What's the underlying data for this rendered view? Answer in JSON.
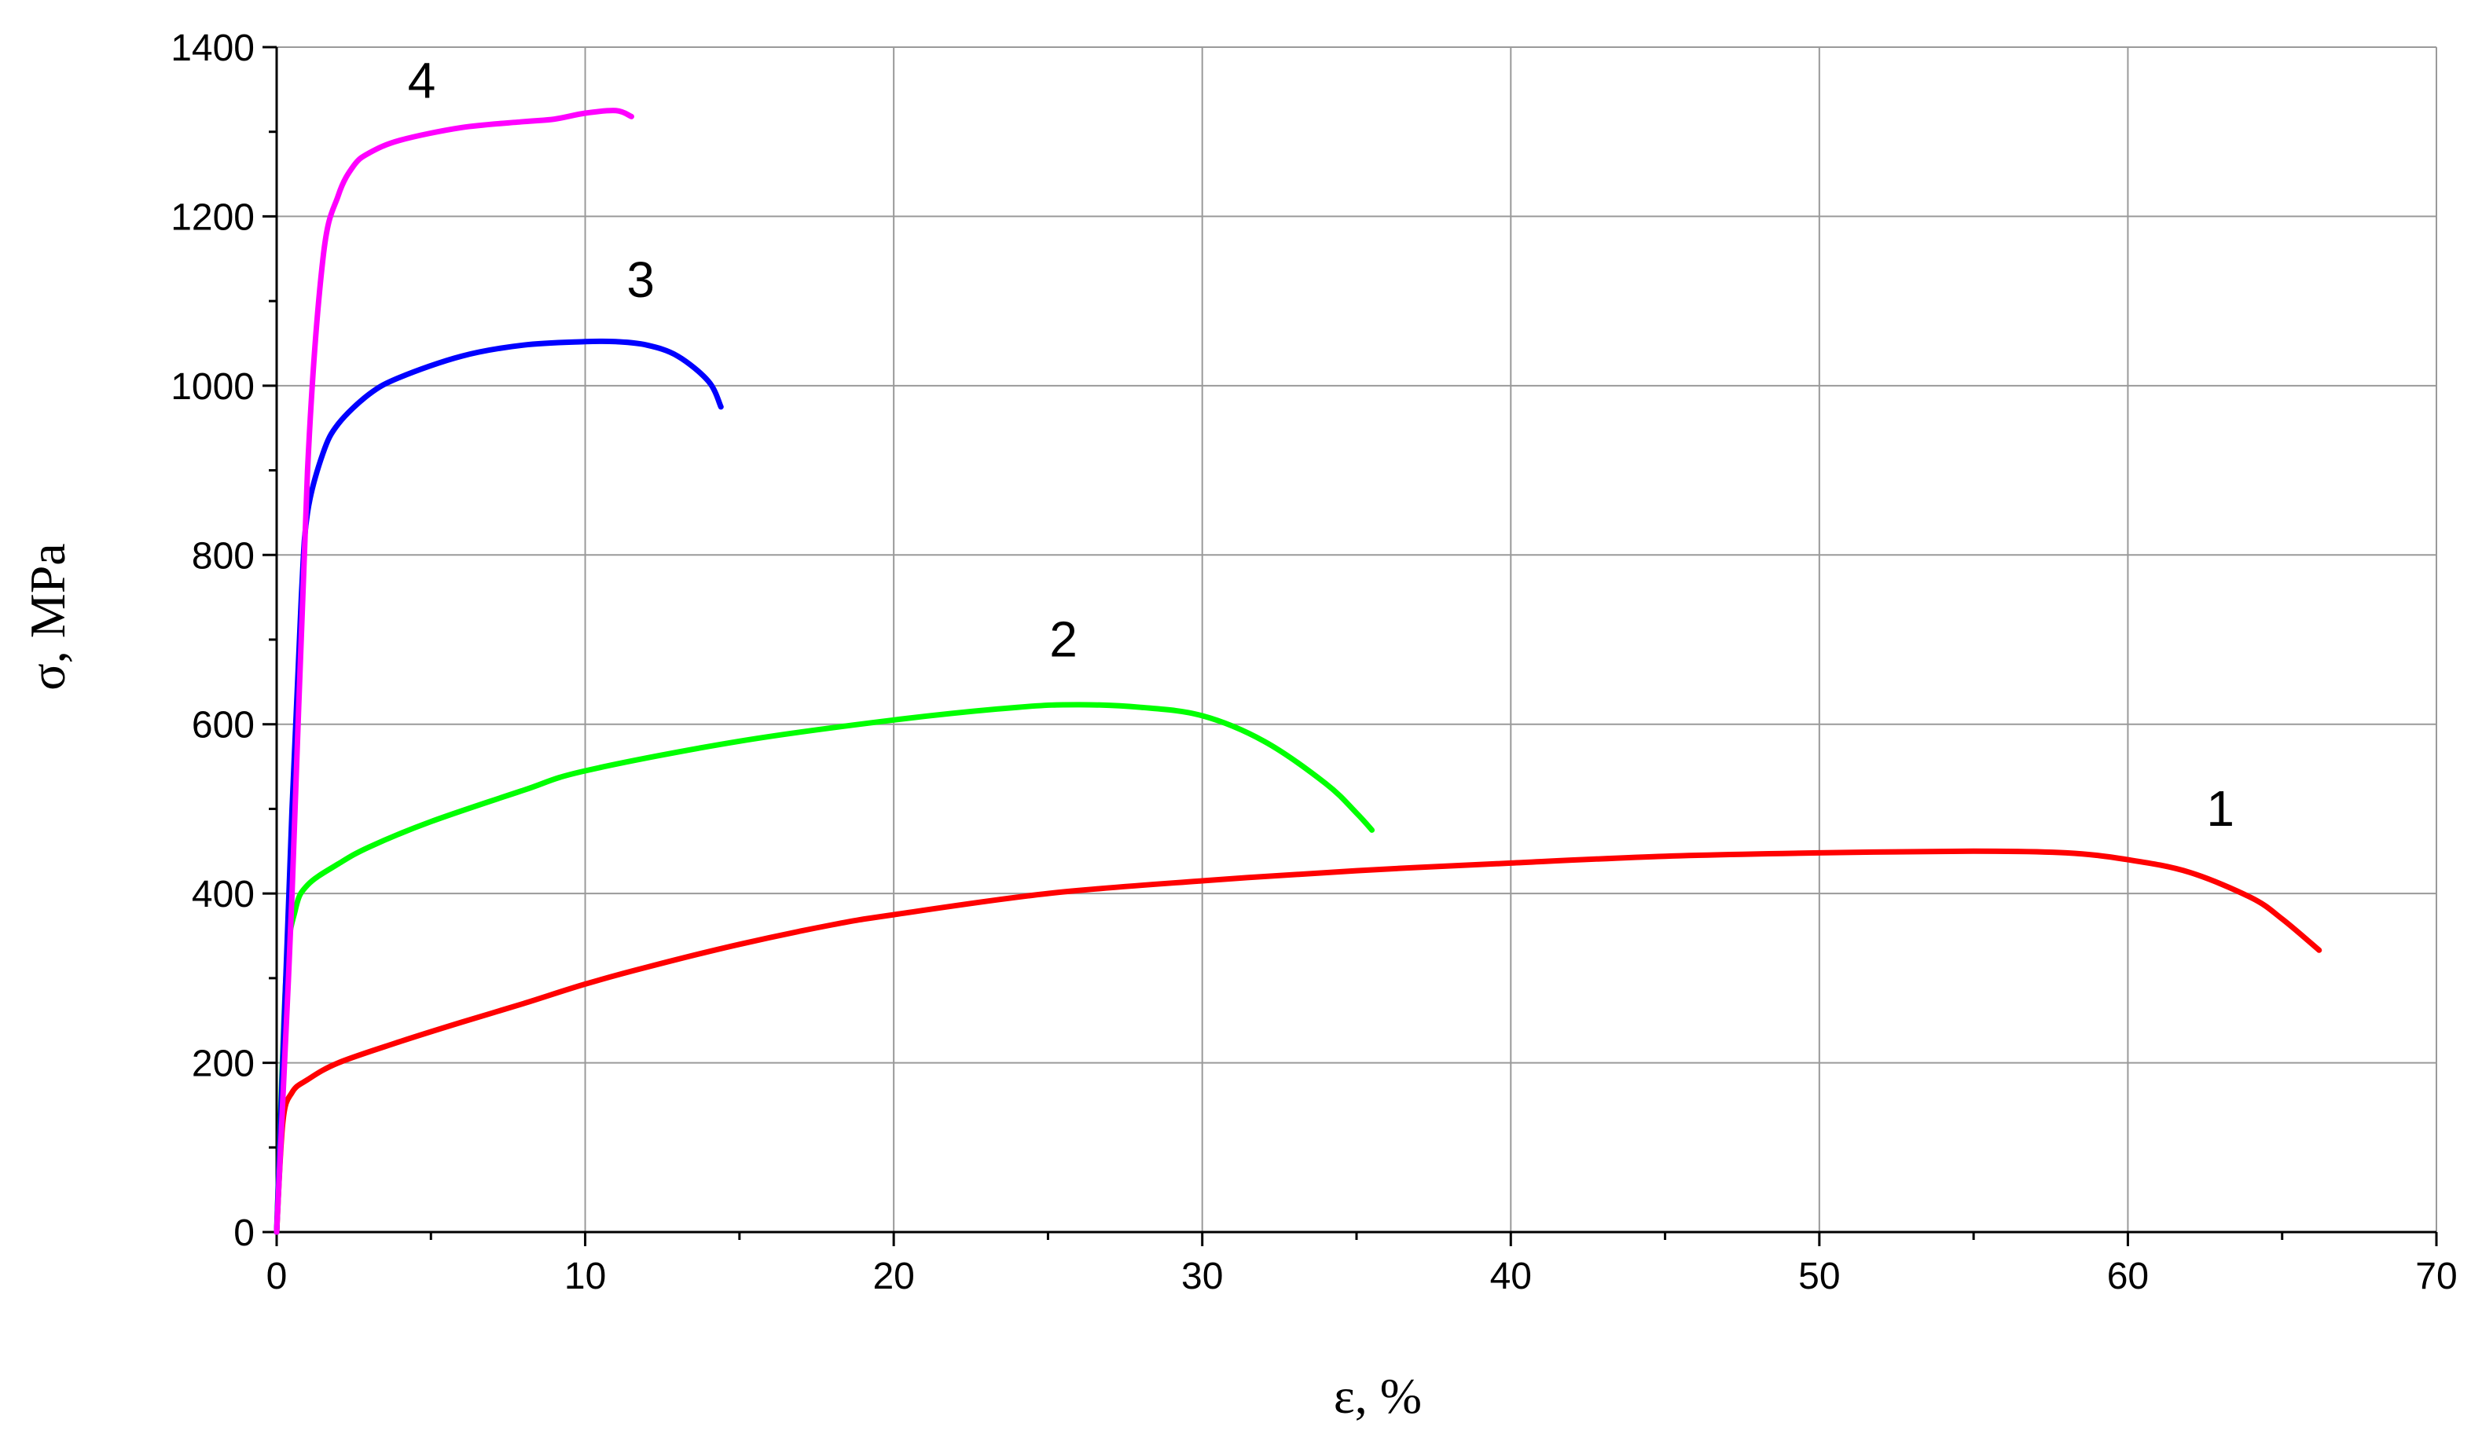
{
  "chart_data": {
    "type": "line",
    "xlabel": "ε, %",
    "ylabel": "σ, MPa",
    "xlim": [
      0,
      70
    ],
    "ylim": [
      0,
      1400
    ],
    "x_ticks": [
      0,
      10,
      20,
      30,
      40,
      50,
      60,
      70
    ],
    "y_ticks": [
      0,
      200,
      400,
      600,
      800,
      1000,
      1200,
      1400
    ],
    "x_minor_step": 5,
    "y_minor_step": 100,
    "grid": true,
    "legend": "none",
    "series": [
      {
        "name": "1",
        "color": "#ff0000",
        "x": [
          0,
          0.2,
          0.5,
          1,
          2,
          4,
          6,
          8,
          10,
          12,
          15,
          18,
          20,
          25,
          30,
          35,
          40,
          45,
          50,
          55,
          58,
          60,
          62,
          64,
          65,
          66.2
        ],
        "y": [
          0,
          130,
          165,
          180,
          200,
          225,
          248,
          270,
          293,
          313,
          340,
          363,
          375,
          400,
          415,
          427,
          436,
          444,
          448,
          450,
          448,
          440,
          425,
          395,
          370,
          333
        ]
      },
      {
        "name": "2",
        "color": "#00ff00",
        "x": [
          0,
          0.3,
          0.6,
          1,
          2,
          3,
          5,
          8,
          10,
          15,
          20,
          24,
          26,
          28,
          30,
          32,
          34,
          35,
          35.5
        ],
        "y": [
          0,
          300,
          380,
          410,
          435,
          455,
          485,
          522,
          545,
          580,
          605,
          620,
          623,
          620,
          610,
          580,
          530,
          495,
          475
        ]
      },
      {
        "name": "3",
        "color": "#0000ff",
        "x": [
          0,
          0.5,
          0.8,
          1,
          1.5,
          2,
          3,
          4,
          6,
          8,
          10,
          11,
          12,
          13,
          14,
          14.4
        ],
        "y": [
          0,
          500,
          750,
          850,
          920,
          955,
          990,
          1010,
          1035,
          1048,
          1052,
          1052,
          1048,
          1035,
          1005,
          975
        ]
      },
      {
        "name": "4",
        "color": "#ff00ff",
        "x": [
          0,
          0.5,
          1,
          1.5,
          2,
          2.5,
          3,
          4,
          6,
          8,
          9,
          10,
          11,
          11.5
        ],
        "y": [
          0,
          400,
          900,
          1150,
          1225,
          1260,
          1275,
          1290,
          1305,
          1312,
          1315,
          1322,
          1325,
          1318
        ]
      }
    ],
    "annotations": [
      {
        "text": "1",
        "x": 63,
        "y": 480
      },
      {
        "text": "2",
        "x": 25.5,
        "y": 680
      },
      {
        "text": "3",
        "x": 11.8,
        "y": 1105
      },
      {
        "text": "4",
        "x": 4.7,
        "y": 1340
      }
    ]
  }
}
